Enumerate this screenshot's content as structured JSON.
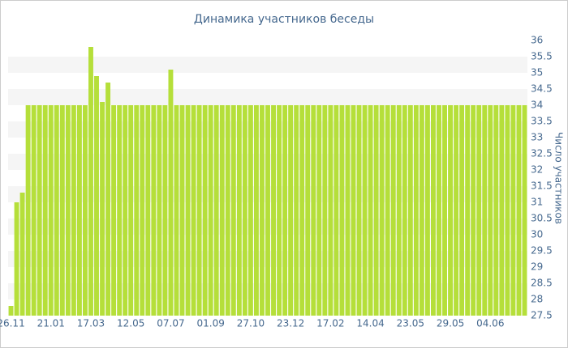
{
  "chart_data": {
    "type": "bar",
    "title": "Динамика участников беседы",
    "y_label": "Число участников",
    "categories": [
      "26.11",
      null,
      null,
      null,
      null,
      null,
      null,
      "21.01",
      null,
      null,
      null,
      null,
      null,
      null,
      "17.03",
      null,
      null,
      null,
      null,
      null,
      null,
      "12.05",
      null,
      null,
      null,
      null,
      null,
      null,
      "07.07",
      null,
      null,
      null,
      null,
      null,
      null,
      "01.09",
      null,
      null,
      null,
      null,
      null,
      null,
      "27.10",
      null,
      null,
      null,
      null,
      null,
      null,
      "23.12",
      null,
      null,
      null,
      null,
      null,
      null,
      "17.02",
      null,
      null,
      null,
      null,
      null,
      null,
      "14.04",
      null,
      null,
      null,
      null,
      null,
      null,
      "23.05",
      null,
      null,
      null,
      null,
      null,
      null,
      "29.05",
      null,
      null,
      null,
      null,
      null,
      null,
      "04.06",
      null,
      null,
      null,
      null,
      null,
      null
    ],
    "values": [
      27.8,
      31,
      31.3,
      34,
      34,
      34,
      34,
      34,
      34,
      34,
      34,
      34,
      34,
      34,
      35.8,
      34.9,
      34.1,
      34.7,
      34,
      34,
      34,
      34,
      34,
      34,
      34,
      34,
      34,
      34,
      35.1,
      34,
      34,
      34,
      34,
      34,
      34,
      34,
      34,
      34,
      34,
      34,
      34,
      34,
      34,
      34,
      34,
      34,
      34,
      34,
      34,
      34,
      34,
      34,
      34,
      34,
      34,
      34,
      34,
      34,
      34,
      34,
      34,
      34,
      34,
      34,
      34,
      34,
      34,
      34,
      34,
      34,
      34,
      34,
      34,
      34,
      34,
      34,
      34,
      34,
      34,
      34,
      34,
      34,
      34,
      34,
      34,
      34,
      34,
      34,
      34,
      34,
      34
    ],
    "color": "#b5df3a",
    "ylim": [
      27.5,
      36
    ],
    "yticks": [
      27.5,
      28,
      28.5,
      29,
      29.5,
      30,
      30.5,
      31,
      31.5,
      32,
      32.5,
      33,
      33.5,
      34,
      34.5,
      35,
      35.5,
      36
    ],
    "grid": true
  }
}
